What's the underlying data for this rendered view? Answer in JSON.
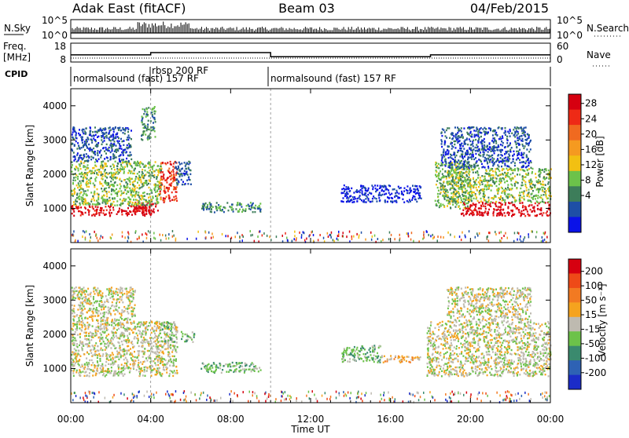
{
  "header": {
    "station": "Adak East (fitACF)",
    "beam": "Beam 03",
    "date": "04/Feb/2015"
  },
  "noise_panel": {
    "left_label": "N.Sky",
    "right_label": "N.Search",
    "left_ticks": [
      "10^5",
      "10^0"
    ],
    "right_ticks": [
      "10^5",
      "10^0"
    ]
  },
  "freq_panel": {
    "left_label_1": "Freq.",
    "left_label_2": "[MHz]",
    "right_label": "Nave",
    "left_ticks": [
      "18",
      "8"
    ],
    "right_ticks": [
      "60",
      "0"
    ],
    "freq_segments": [
      {
        "t0": 0.0,
        "t1": 4.0,
        "mhz": 11.8
      },
      {
        "t0": 4.0,
        "t1": 10.0,
        "mhz": 13.0
      },
      {
        "t0": 10.0,
        "t1": 18.0,
        "mhz": 10.8
      },
      {
        "t0": 18.0,
        "t1": 24.0,
        "mhz": 11.8
      }
    ]
  },
  "cpid": {
    "label": "CPID",
    "segments": [
      {
        "text": "normalsound (fast) 157 RF",
        "t0": 0.0,
        "t1": 4.0
      },
      {
        "text": "rbsp 200 RF",
        "t0": 4.0,
        "t1": 10.0
      },
      {
        "text": "normalsound (fast) 157 RF",
        "t0": 10.0,
        "t1": 24.0
      }
    ]
  },
  "time_axis": {
    "label": "Time UT",
    "ticks": [
      "00:00",
      "04:00",
      "08:00",
      "12:00",
      "16:00",
      "20:00",
      "00:00"
    ]
  },
  "power_bar": {
    "label": "Power [dB]",
    "ticks": [
      "28",
      "24",
      "20",
      "16",
      "12",
      "8",
      "4"
    ],
    "colors": [
      "#0a12e8",
      "#1e4fa6",
      "#3d7d5a",
      "#6cc24a",
      "#f2c012",
      "#f59a20",
      "#f06a20",
      "#ee2a16",
      "#d60010"
    ]
  },
  "velocity_bar": {
    "label": "Velocity [m s⁻¹]",
    "ticks": [
      "200",
      "100",
      "50",
      "15",
      "-15",
      "-50",
      "-100",
      "-200"
    ],
    "colors": [
      "#1b2cc8",
      "#2e62b4",
      "#3a8a6e",
      "#6cc24a",
      "#bebab0",
      "#f5a31e",
      "#f27a22",
      "#ee4a18",
      "#d60010"
    ]
  },
  "chart_data": [
    {
      "type": "heatmap",
      "name": "Power",
      "x_unit": "hours UT",
      "xlim": [
        0,
        24
      ],
      "ylim": [
        0,
        4500
      ],
      "ylabel": "Slant Range [km]",
      "yticks": [
        1000,
        2000,
        3000,
        4000
      ],
      "xlabel": "",
      "colorbar_label": "Power [dB]",
      "regions": [
        {
          "t0": 0.0,
          "t1": 4.0,
          "r0": 800,
          "r1": 1100,
          "level": 8
        },
        {
          "t0": 3.2,
          "t1": 4.4,
          "r0": 900,
          "r1": 1200,
          "level": 8
        },
        {
          "t0": 4.4,
          "t1": 5.3,
          "r0": 1200,
          "r1": 2400,
          "level": 7
        },
        {
          "t0": 0.0,
          "t1": 4.5,
          "r0": 1100,
          "r1": 2400,
          "level": 3
        },
        {
          "t0": 0.0,
          "t1": 3.0,
          "r0": 2400,
          "r1": 3400,
          "level": 1
        },
        {
          "t0": 3.5,
          "t1": 4.2,
          "r0": 3000,
          "r1": 4000,
          "level": 2
        },
        {
          "t0": 5.2,
          "t1": 6.0,
          "r0": 1700,
          "r1": 2400,
          "level": 1
        },
        {
          "t0": 6.5,
          "t1": 9.5,
          "r0": 900,
          "r1": 1200,
          "level": 2
        },
        {
          "t0": 13.5,
          "t1": 17.5,
          "r0": 1200,
          "r1": 1700,
          "level": 0
        },
        {
          "t0": 18.2,
          "t1": 20.0,
          "r0": 1000,
          "r1": 2400,
          "level": 3
        },
        {
          "t0": 19.5,
          "t1": 24.0,
          "r0": 800,
          "r1": 1200,
          "level": 8
        },
        {
          "t0": 19.0,
          "t1": 24.0,
          "r0": 1200,
          "r1": 2200,
          "level": 3
        },
        {
          "t0": 18.5,
          "t1": 23.0,
          "r0": 2200,
          "r1": 3400,
          "level": 1
        }
      ]
    },
    {
      "type": "heatmap",
      "name": "Velocity",
      "x_unit": "hours UT",
      "xlim": [
        0,
        24
      ],
      "ylim": [
        0,
        4500
      ],
      "ylabel": "Slant Range [km]",
      "yticks": [
        1000,
        2000,
        3000,
        4000
      ],
      "xlabel": "Time UT",
      "colorbar_label": "Velocity [m s⁻¹]",
      "regions": [
        {
          "t0": 0.0,
          "t1": 5.3,
          "r0": 800,
          "r1": 2400,
          "level": 4
        },
        {
          "t0": 0.0,
          "t1": 3.2,
          "r0": 2400,
          "r1": 3400,
          "level": 4
        },
        {
          "t0": 4.4,
          "t1": 5.2,
          "r0": 1800,
          "r1": 2400,
          "level": 3
        },
        {
          "t0": 5.5,
          "t1": 6.2,
          "r0": 1800,
          "r1": 2100,
          "level": 3
        },
        {
          "t0": 6.5,
          "t1": 9.5,
          "r0": 900,
          "r1": 1200,
          "level": 3
        },
        {
          "t0": 13.5,
          "t1": 15.5,
          "r0": 1200,
          "r1": 1700,
          "level": 3
        },
        {
          "t0": 15.5,
          "t1": 17.5,
          "r0": 1200,
          "r1": 1400,
          "level": 5
        },
        {
          "t0": 17.8,
          "t1": 24.0,
          "r0": 800,
          "r1": 2400,
          "level": 4
        },
        {
          "t0": 18.8,
          "t1": 23.0,
          "r0": 2400,
          "r1": 3400,
          "level": 4
        }
      ]
    }
  ]
}
